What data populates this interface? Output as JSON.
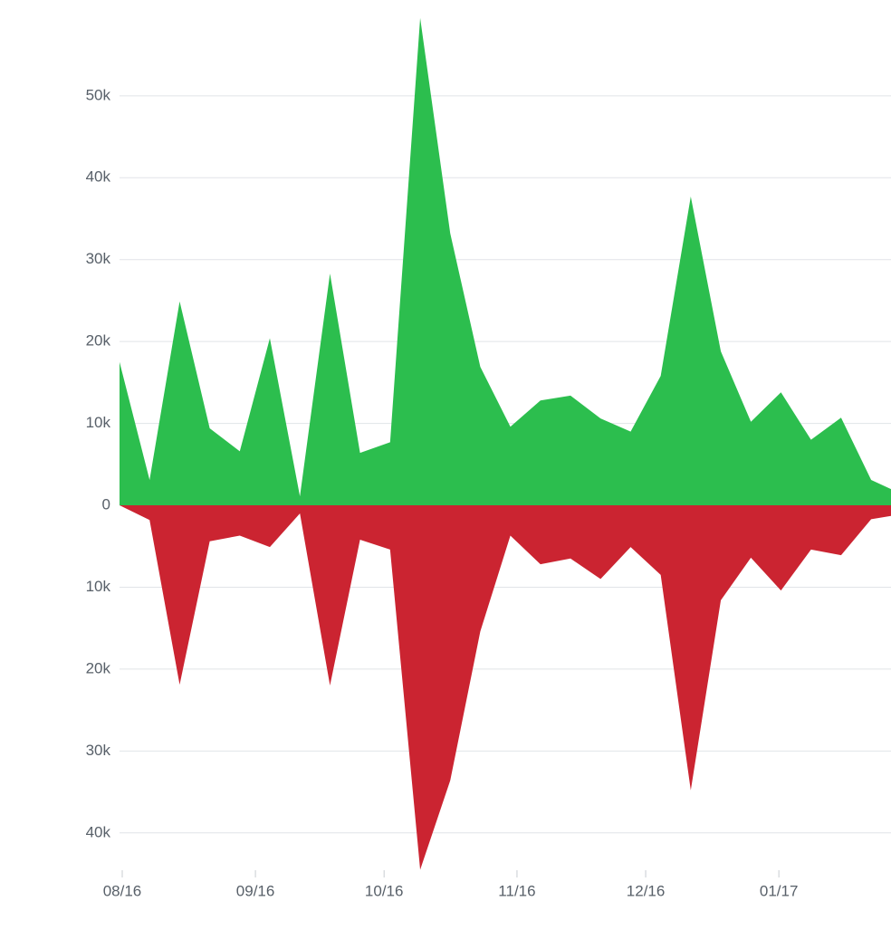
{
  "chart_data": {
    "type": "mirrored-area",
    "x": [
      0,
      1,
      2,
      3,
      4,
      5,
      6,
      7,
      8,
      9,
      10,
      11,
      12,
      13,
      14,
      15,
      16,
      17,
      18,
      19,
      20,
      21,
      22,
      23,
      24,
      25,
      26
    ],
    "series": [
      {
        "color": "#2cbe4e",
        "values": [
          17500,
          3100,
          24900,
          9400,
          6600,
          20400,
          1100,
          28300,
          6400,
          7700,
          59500,
          33200,
          16900,
          9600,
          12800,
          13400,
          10600,
          9000,
          15800,
          37700,
          18800,
          10200,
          13800,
          8000,
          10700,
          3100,
          1400
        ]
      },
      {
        "color": "#cb2431",
        "values": [
          0,
          -1800,
          -21900,
          -4400,
          -3700,
          -5100,
          -1000,
          -22000,
          -4200,
          -5400,
          -44500,
          -33600,
          -15400,
          -3700,
          -7200,
          -6500,
          -9000,
          -5100,
          -8500,
          -34800,
          -11600,
          -6400,
          -10400,
          -5400,
          -6100,
          -1700,
          -1100
        ]
      }
    ],
    "xlim": [
      0,
      25.66
    ],
    "xticks": [
      {
        "value": 0.09,
        "label": "08/16"
      },
      {
        "value": 4.52,
        "label": "09/16"
      },
      {
        "value": 8.8,
        "label": "10/16"
      },
      {
        "value": 13.22,
        "label": "11/16"
      },
      {
        "value": 17.5,
        "label": "12/16"
      },
      {
        "value": 21.93,
        "label": "01/17"
      }
    ],
    "ylim": [
      -45000,
      61700
    ],
    "yticks": [
      {
        "value": -40000,
        "label": "40k"
      },
      {
        "value": -30000,
        "label": "30k"
      },
      {
        "value": -20000,
        "label": "20k"
      },
      {
        "value": -10000,
        "label": "10k"
      },
      0,
      {
        "value": 10000,
        "label": "10k"
      },
      {
        "value": 20000,
        "label": "20k"
      },
      {
        "value": 30000,
        "label": "30k"
      },
      {
        "value": 40000,
        "label": "40k"
      },
      {
        "value": 50000,
        "label": "50k"
      }
    ],
    "grid": true
  }
}
